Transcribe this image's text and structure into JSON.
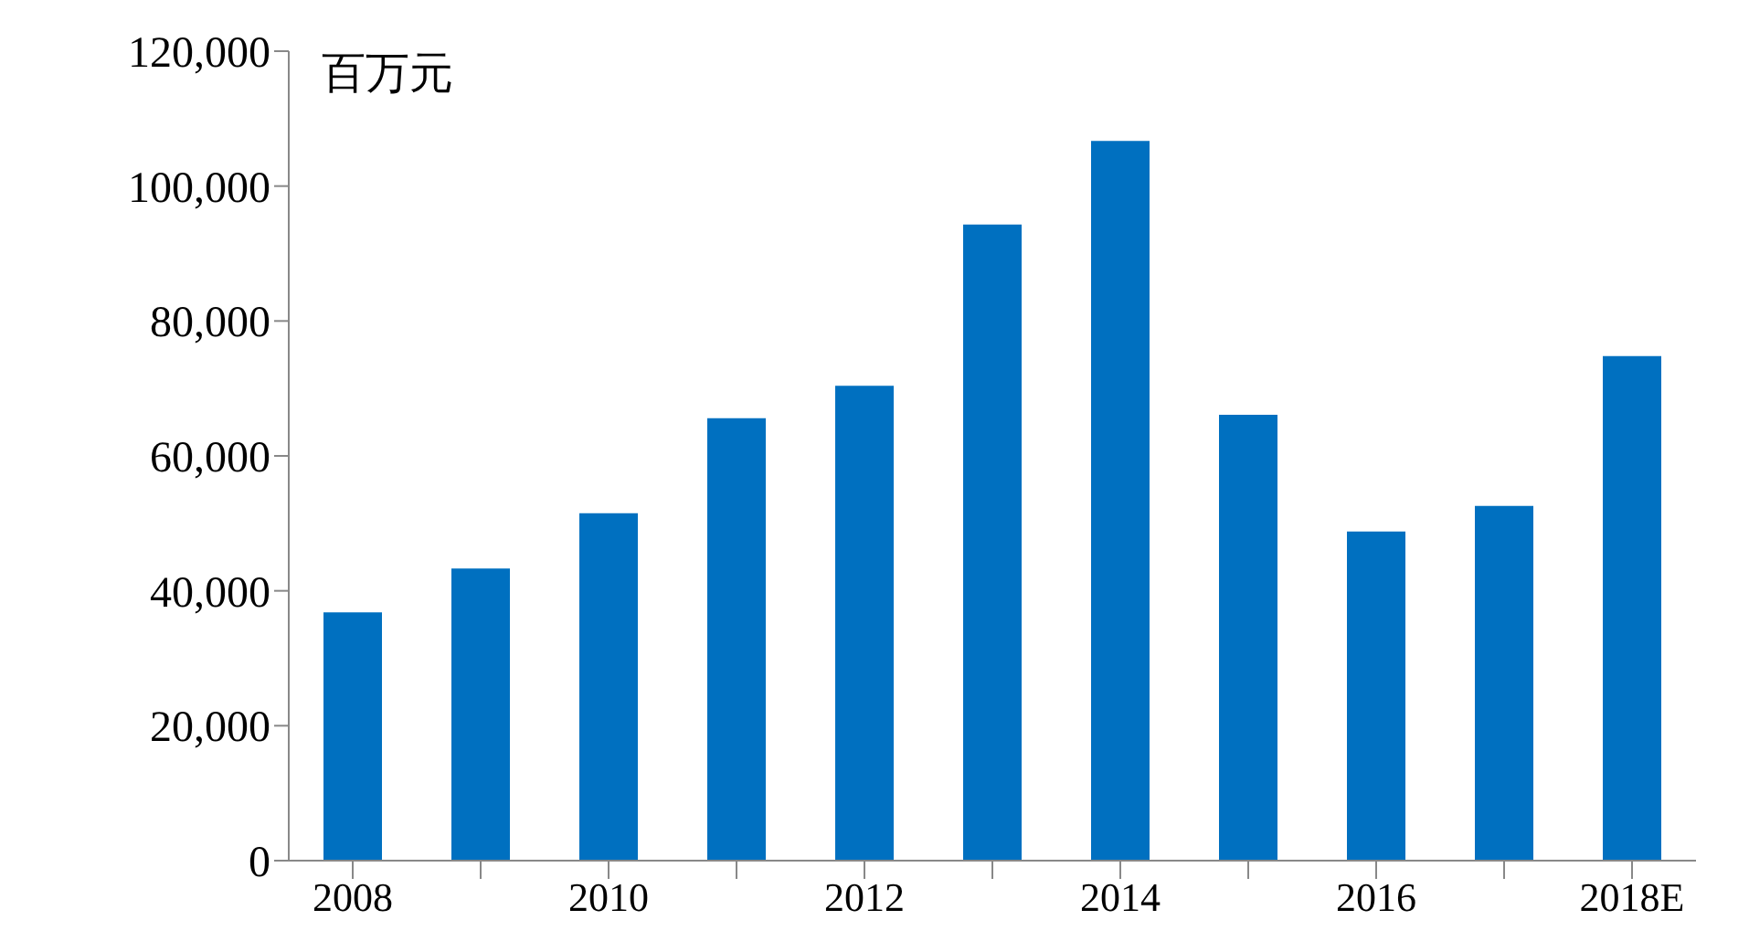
{
  "chart_data": {
    "type": "bar",
    "ylabel": "百万元",
    "categories": [
      "2008",
      null,
      "2010",
      null,
      "2012",
      null,
      "2014",
      null,
      "2016",
      null,
      "2018E"
    ],
    "values": [
      36800,
      43300,
      51500,
      65600,
      70400,
      94300,
      106700,
      66100,
      48800,
      52600,
      74800
    ],
    "color": "#0070c0",
    "ylim": [
      0,
      120000
    ],
    "yticks": [
      {
        "value": 0,
        "label": "0"
      },
      {
        "value": 20000,
        "label": "20,000"
      },
      {
        "value": 40000,
        "label": "40,000"
      },
      {
        "value": 60000,
        "label": "60,000"
      },
      {
        "value": 80000,
        "label": "80,000"
      },
      {
        "value": 100000,
        "label": "100,000"
      },
      {
        "value": 120000,
        "label": "120,000"
      }
    ],
    "grid": false,
    "legend": false
  }
}
